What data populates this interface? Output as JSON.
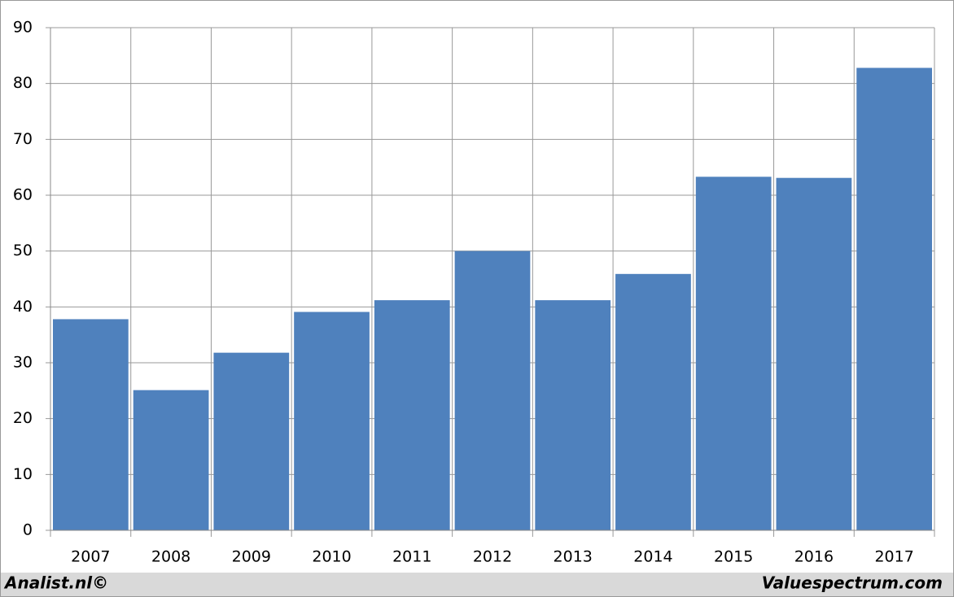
{
  "chart_data": {
    "type": "bar",
    "categories": [
      "2007",
      "2008",
      "2009",
      "2010",
      "2011",
      "2012",
      "2013",
      "2014",
      "2015",
      "2016",
      "2017"
    ],
    "values": [
      37.8,
      25.1,
      31.8,
      39.1,
      41.2,
      50,
      41.2,
      45.9,
      63.3,
      63.1,
      82.8
    ],
    "color": "#4f81bd",
    "ylim": [
      0,
      90
    ],
    "yticks": [
      0,
      10,
      20,
      30,
      40,
      50,
      60,
      70,
      80,
      90
    ],
    "grid": true,
    "credits": [
      "Analist.nl©",
      "Valuespectrum.com"
    ]
  }
}
